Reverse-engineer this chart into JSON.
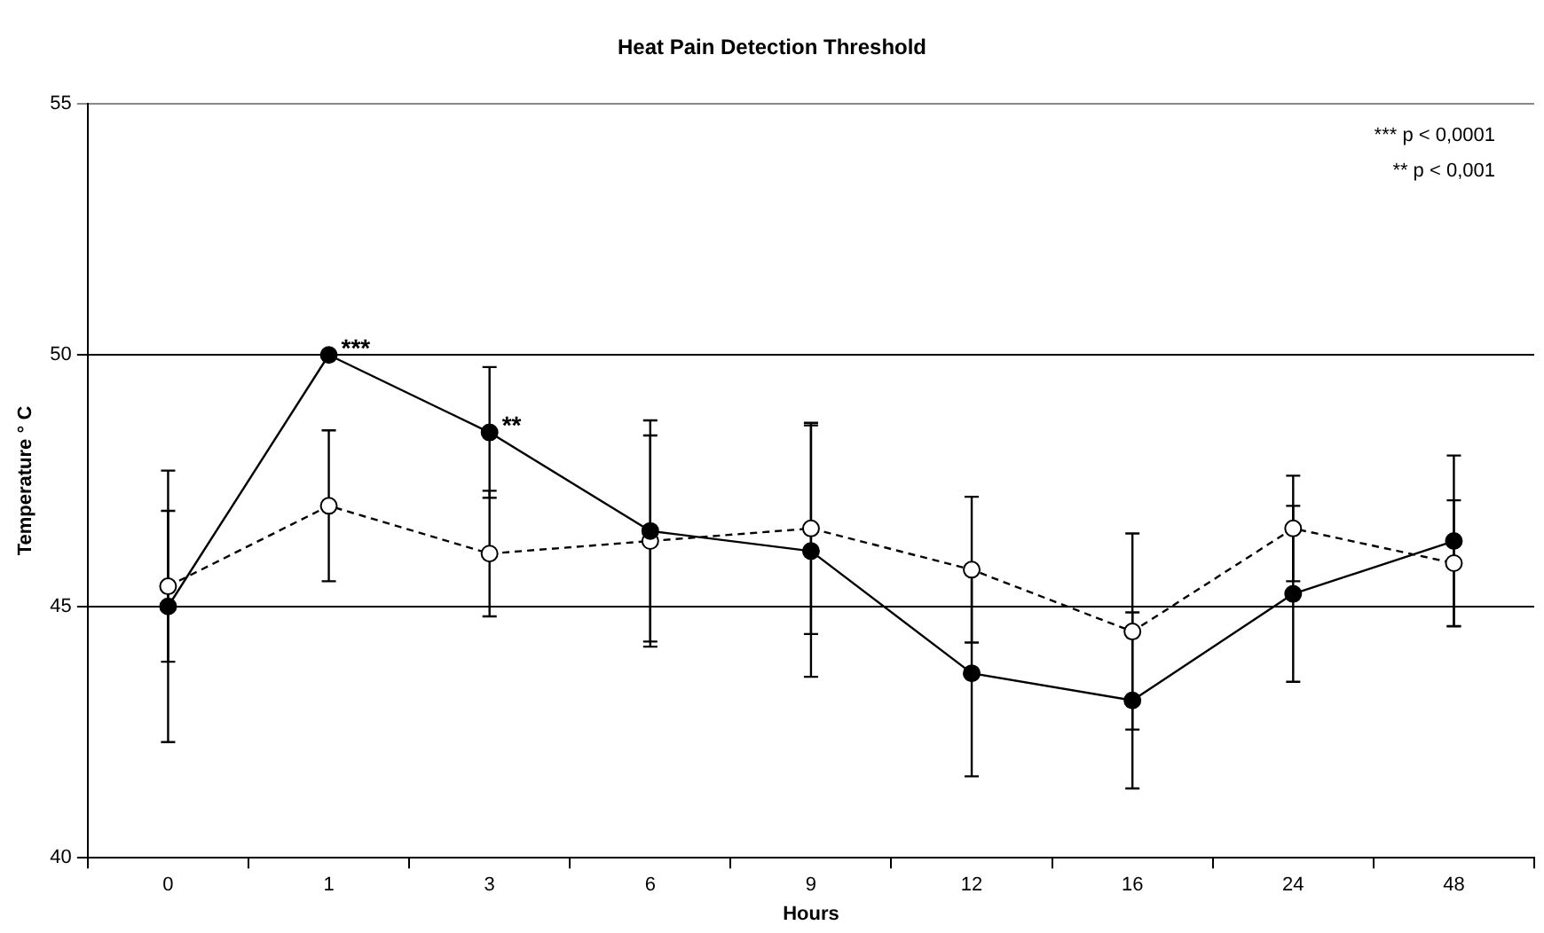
{
  "chart_data": {
    "type": "line",
    "title": "Heat Pain Detection Threshold",
    "xlabel": "Hours",
    "ylabel": "Temperature ° C",
    "categories": [
      "0",
      "1",
      "3",
      "6",
      "9",
      "12",
      "16",
      "24",
      "48"
    ],
    "series": [
      {
        "color": "#000000",
        "line_style": "solid",
        "values": [
          45.0,
          50.0,
          48.46,
          46.5,
          46.1,
          43.67,
          43.13,
          45.25,
          46.3
        ],
        "errors": [
          2.7,
          null,
          1.3,
          2.2,
          2.5,
          2.05,
          1.75,
          1.75,
          1.7
        ]
      },
      {
        "color": "#000000",
        "line_style": "dashed",
        "values": [
          45.4,
          47.0,
          46.05,
          46.3,
          46.55,
          45.73,
          44.5,
          46.55,
          45.86
        ],
        "errors": [
          1.5,
          1.5,
          1.25,
          2.1,
          2.1,
          1.45,
          1.95,
          1.05,
          1.25
        ]
      }
    ],
    "ylim": [
      40,
      55
    ],
    "yticks": [
      40,
      45,
      50,
      55
    ],
    "grid": "y",
    "legend": false,
    "marker": "circle",
    "annotations": [
      {
        "text": "***",
        "x": "1",
        "y": 50.0
      },
      {
        "text": "**",
        "x": "3",
        "y": 48.46
      },
      "*** p < 0,0001",
      "** p < 0,001"
    ]
  }
}
